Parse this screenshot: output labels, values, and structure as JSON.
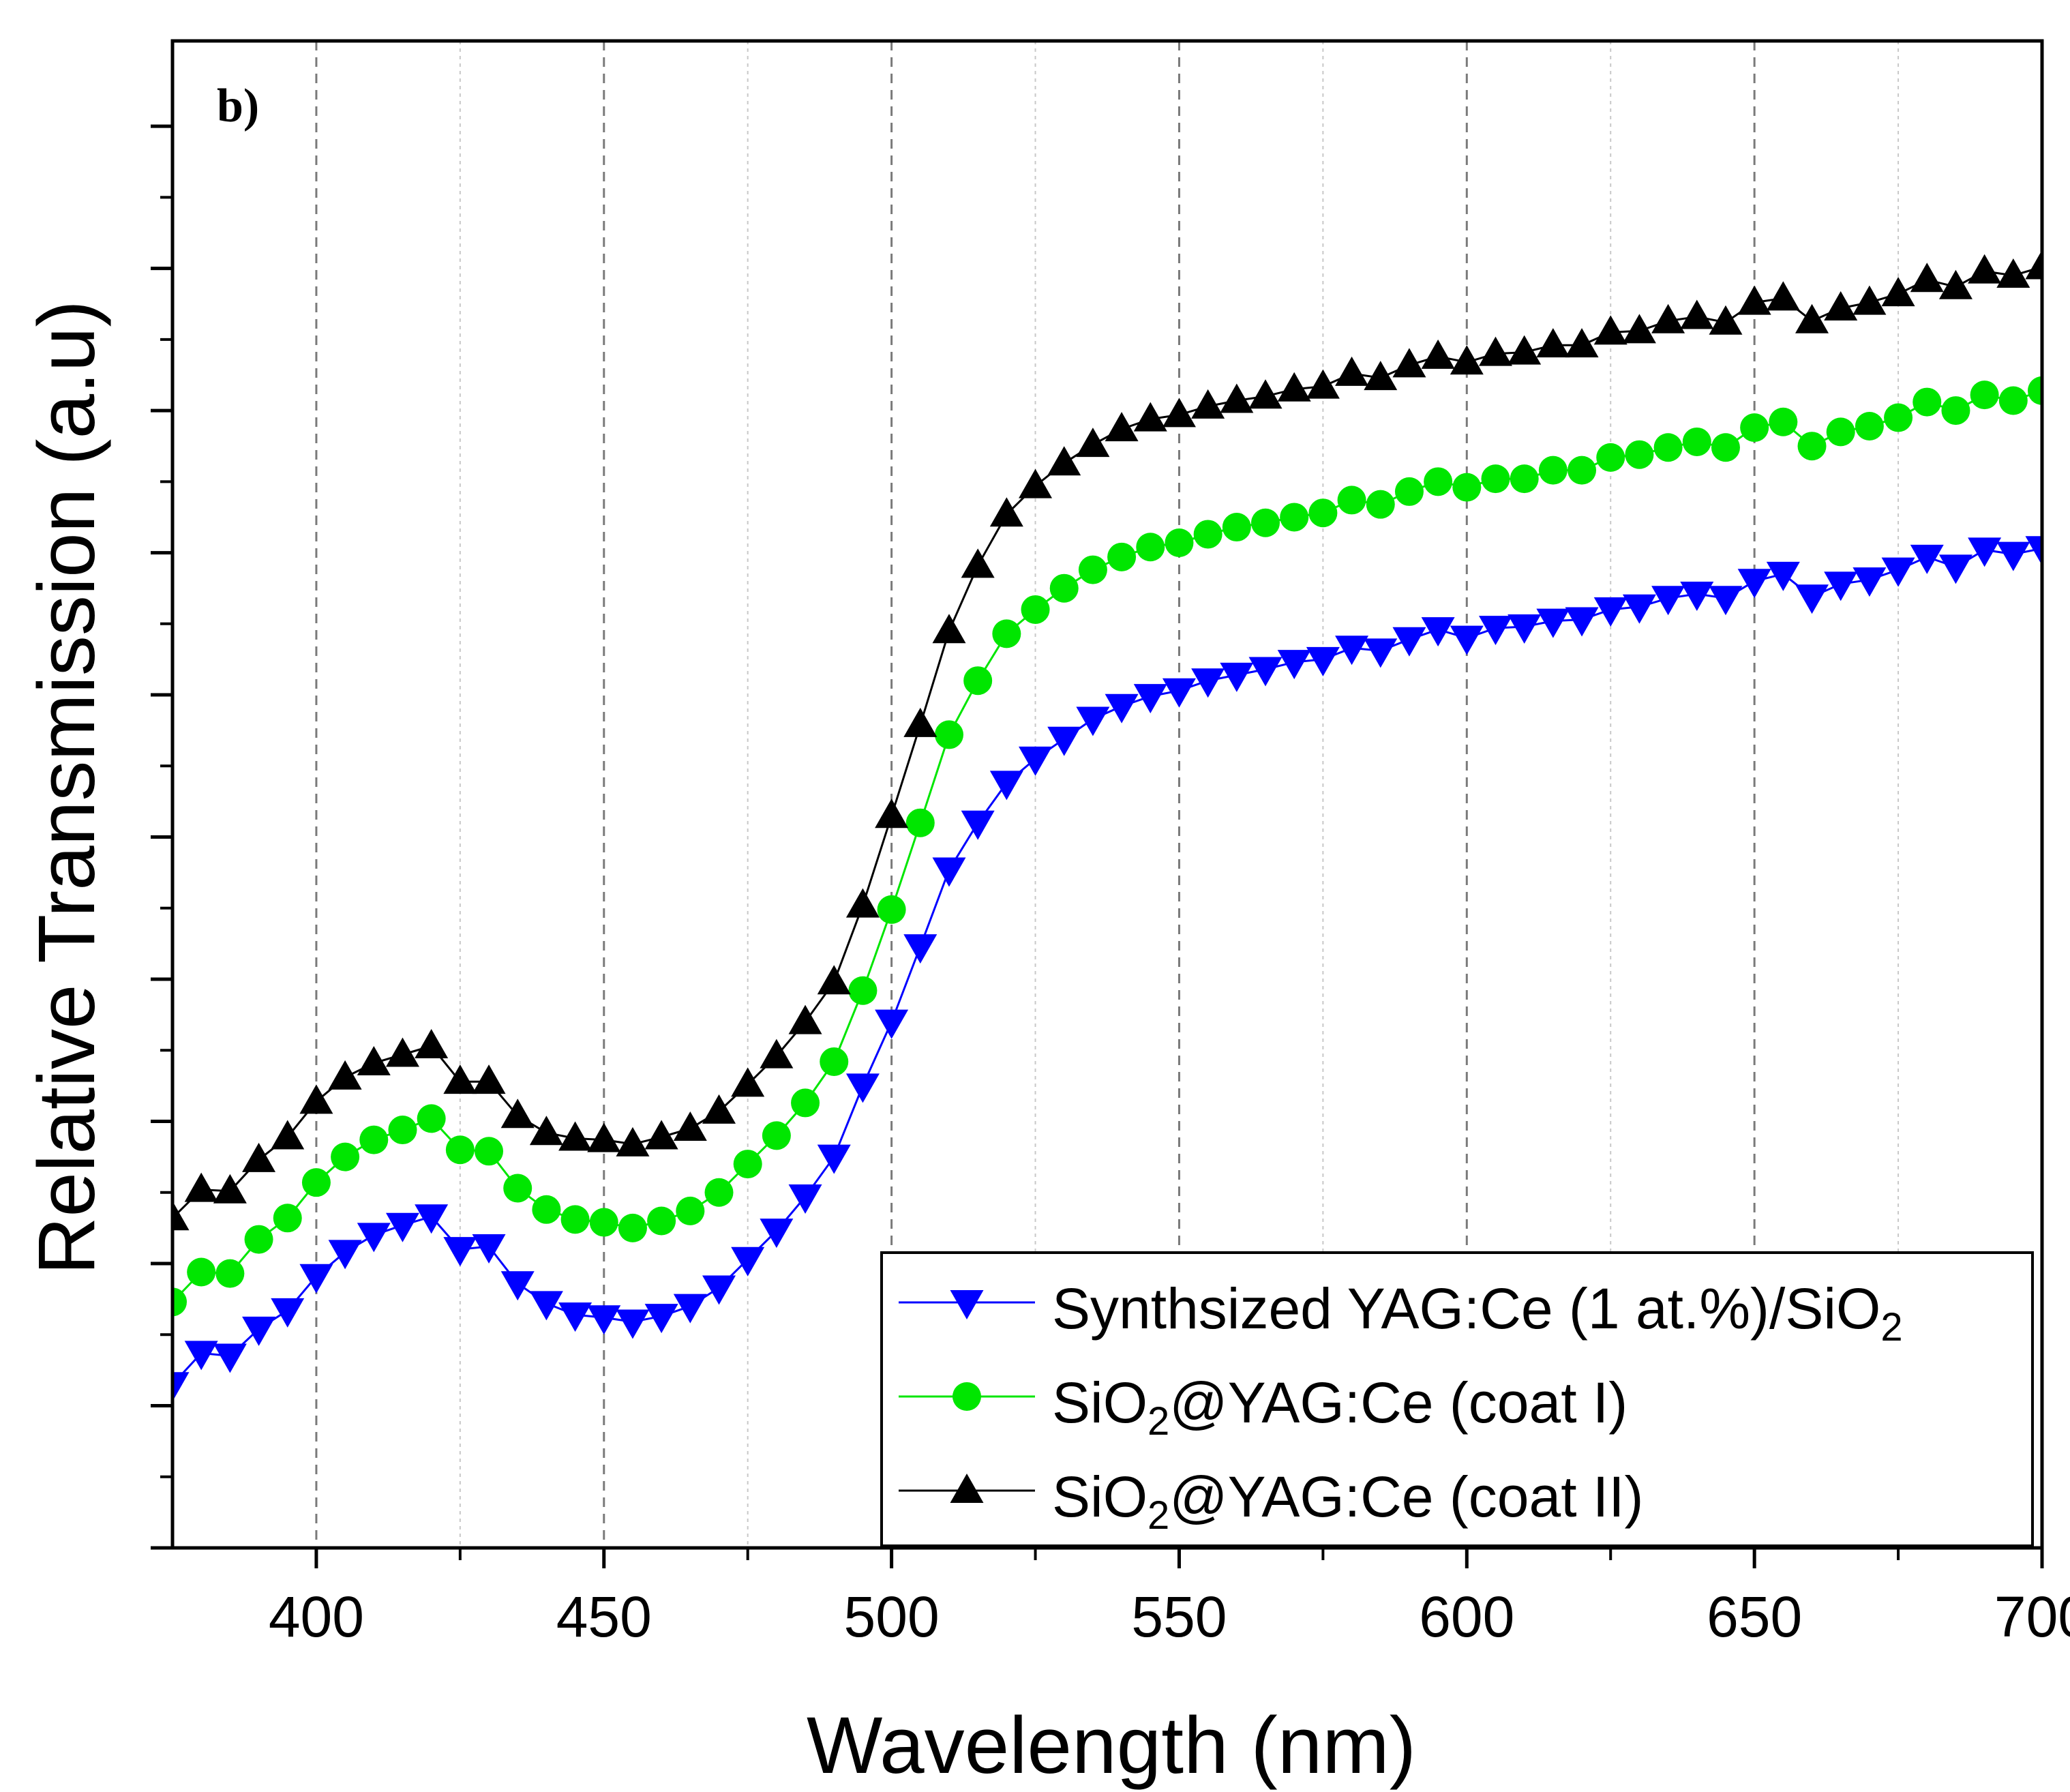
{
  "chart_data": {
    "type": "line",
    "panel_label": "b)",
    "xlabel": "Wavelength (nm)",
    "ylabel": "Relative Transmission (a.u)",
    "xlim": [
      375,
      700
    ],
    "ylim": [
      0,
      1.06
    ],
    "x_major_ticks": [
      400,
      450,
      500,
      550,
      600,
      650,
      700
    ],
    "x_tick_labels": [
      "400",
      "450",
      "500",
      "550",
      "600",
      "650",
      "700"
    ],
    "x_minor_ticks": [
      425,
      475,
      525,
      575,
      625,
      675
    ],
    "grid": "vertical dashed",
    "y_tick_labels_shown": false,
    "legend_position": "bottom-right",
    "x": [
      375,
      380,
      385,
      390,
      395,
      400,
      405,
      410,
      415,
      420,
      425,
      430,
      435,
      440,
      445,
      450,
      455,
      460,
      465,
      470,
      475,
      480,
      485,
      490,
      495,
      500,
      505,
      510,
      515,
      520,
      525,
      530,
      535,
      540,
      545,
      550,
      555,
      560,
      565,
      570,
      575,
      580,
      585,
      590,
      595,
      600,
      605,
      610,
      615,
      620,
      625,
      630,
      635,
      640,
      645,
      650,
      655,
      660,
      665,
      670,
      675,
      680,
      685,
      690,
      695,
      700
    ],
    "series": [
      {
        "name": "Synthsized YAG:Ce (1 at.%)/SiO",
        "name_sub": "2",
        "color": "#0000ff",
        "marker": "triangle-down",
        "values": [
          0.115,
          0.137,
          0.135,
          0.154,
          0.167,
          0.191,
          0.208,
          0.22,
          0.227,
          0.233,
          0.21,
          0.212,
          0.186,
          0.172,
          0.164,
          0.162,
          0.159,
          0.163,
          0.17,
          0.183,
          0.203,
          0.223,
          0.247,
          0.275,
          0.325,
          0.37,
          0.423,
          0.477,
          0.51,
          0.538,
          0.555,
          0.569,
          0.583,
          0.592,
          0.599,
          0.603,
          0.61,
          0.614,
          0.618,
          0.623,
          0.625,
          0.633,
          0.631,
          0.639,
          0.646,
          0.64,
          0.647,
          0.648,
          0.652,
          0.653,
          0.66,
          0.662,
          0.668,
          0.671,
          0.668,
          0.68,
          0.685,
          0.669,
          0.678,
          0.681,
          0.688,
          0.697,
          0.69,
          0.702,
          0.699,
          0.703
        ]
      },
      {
        "name": "SiO",
        "name_sub": "2",
        "name_rest": "@YAG:Ce (coat I)",
        "color": "#00e600",
        "marker": "circle",
        "values": [
          0.173,
          0.194,
          0.193,
          0.217,
          0.232,
          0.257,
          0.275,
          0.287,
          0.294,
          0.302,
          0.28,
          0.279,
          0.253,
          0.238,
          0.231,
          0.229,
          0.225,
          0.23,
          0.237,
          0.25,
          0.27,
          0.29,
          0.313,
          0.342,
          0.392,
          0.449,
          0.51,
          0.572,
          0.61,
          0.643,
          0.66,
          0.675,
          0.688,
          0.697,
          0.704,
          0.707,
          0.713,
          0.718,
          0.721,
          0.725,
          0.728,
          0.737,
          0.734,
          0.743,
          0.75,
          0.746,
          0.752,
          0.752,
          0.758,
          0.758,
          0.767,
          0.769,
          0.774,
          0.778,
          0.774,
          0.788,
          0.792,
          0.775,
          0.785,
          0.789,
          0.795,
          0.806,
          0.8,
          0.811,
          0.807,
          0.814
        ]
      },
      {
        "name": "SiO",
        "name_sub": "2",
        "name_rest": "@YAG:Ce (coat II)",
        "color": "#000000",
        "marker": "triangle-up",
        "values": [
          0.232,
          0.252,
          0.251,
          0.273,
          0.289,
          0.314,
          0.331,
          0.341,
          0.347,
          0.353,
          0.328,
          0.328,
          0.304,
          0.292,
          0.288,
          0.287,
          0.284,
          0.289,
          0.295,
          0.307,
          0.326,
          0.346,
          0.37,
          0.398,
          0.452,
          0.515,
          0.579,
          0.645,
          0.691,
          0.727,
          0.747,
          0.763,
          0.776,
          0.787,
          0.794,
          0.797,
          0.803,
          0.807,
          0.81,
          0.815,
          0.817,
          0.826,
          0.823,
          0.832,
          0.838,
          0.834,
          0.84,
          0.841,
          0.846,
          0.846,
          0.855,
          0.856,
          0.863,
          0.866,
          0.862,
          0.876,
          0.879,
          0.863,
          0.872,
          0.876,
          0.882,
          0.892,
          0.887,
          0.898,
          0.895,
          0.901
        ]
      }
    ]
  }
}
